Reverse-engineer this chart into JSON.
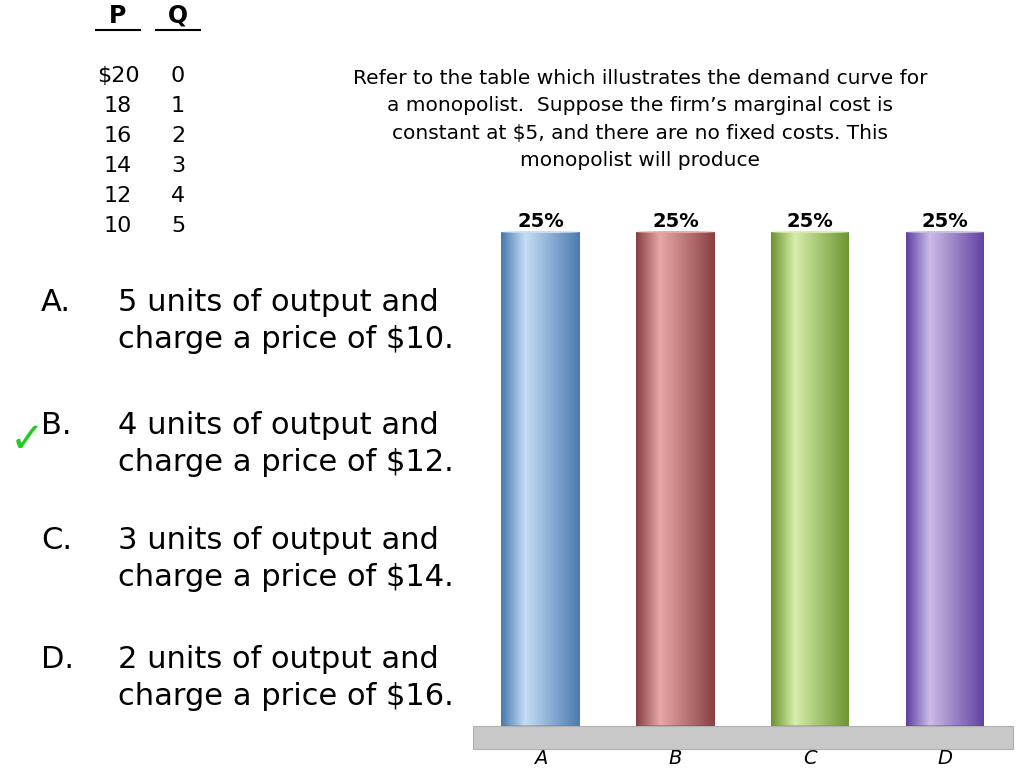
{
  "title_text": "Refer to the table which illustrates the demand curve for\na monopolist.  Suppose the firm’s marginal cost is\nconstant at $5, and there are no fixed costs. This\nmonopolist will produce",
  "table_headers": [
    "P",
    "Q"
  ],
  "table_data": [
    [
      "$20",
      "0"
    ],
    [
      "18",
      "1"
    ],
    [
      "16",
      "2"
    ],
    [
      "14",
      "3"
    ],
    [
      "12",
      "4"
    ],
    [
      "10",
      "5"
    ]
  ],
  "bar_labels": [
    "A",
    "B",
    "C",
    "D"
  ],
  "bar_values": [
    25,
    25,
    25,
    25
  ],
  "bar_colors_mid": [
    "#7ab4e0",
    "#cc7070",
    "#aed46a",
    "#9b80cc"
  ],
  "bar_colors_light": [
    "#c5ddf5",
    "#e8a8a8",
    "#d6eeaa",
    "#cbbce8"
  ],
  "bar_colors_dark": [
    "#4a7ab0",
    "#884040",
    "#6a9430",
    "#6040a0"
  ],
  "bar_label_texts": [
    "25%",
    "25%",
    "25%",
    "25%"
  ],
  "answer_lines_letter": [
    "A.",
    "B.",
    "C.",
    "D."
  ],
  "answer_lines_text": [
    "5 units of output and\ncharge a price of $10.",
    "4 units of output and\ncharge a price of $12.",
    "3 units of output and\ncharge a price of $14.",
    "2 units of output and\ncharge a price of $16."
  ],
  "background_color": "#ffffff",
  "platform_color": "#c8c8c8",
  "platform_edge_color": "#b0b0b0"
}
